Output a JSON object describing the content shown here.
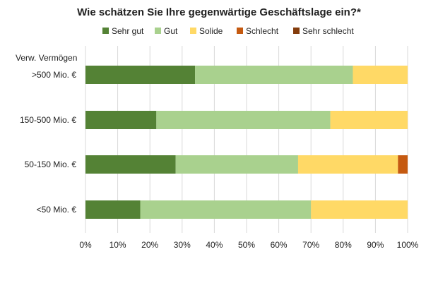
{
  "chart_data": {
    "type": "bar",
    "orientation": "horizontal",
    "stacked": true,
    "title": "Wie schätzen Sie Ihre gegenwärtige Geschäftslage ein?*",
    "category_axis_title": "Verw. Vermögen",
    "categories": [
      ">500 Mio. €",
      "150-500 Mio. €",
      "50-150 Mio. €",
      "<50 Mio. €"
    ],
    "series": [
      {
        "name": "Sehr gut",
        "color": "#548235",
        "values": [
          34,
          22,
          28,
          17
        ]
      },
      {
        "name": "Gut",
        "color": "#A9D18E",
        "values": [
          49,
          54,
          38,
          53
        ]
      },
      {
        "name": "Solide",
        "color": "#FFD966",
        "values": [
          17,
          24,
          31,
          30
        ]
      },
      {
        "name": "Schlecht",
        "color": "#C55A11",
        "values": [
          0,
          0,
          3,
          0
        ]
      },
      {
        "name": "Sehr schlecht",
        "color": "#843C0C",
        "values": [
          0,
          0,
          0,
          0
        ]
      }
    ],
    "xlim": [
      0,
      100
    ],
    "x_ticks": [
      "0%",
      "10%",
      "20%",
      "30%",
      "40%",
      "50%",
      "60%",
      "70%",
      "80%",
      "90%",
      "100%"
    ],
    "grid": true,
    "legend_position": "top"
  }
}
